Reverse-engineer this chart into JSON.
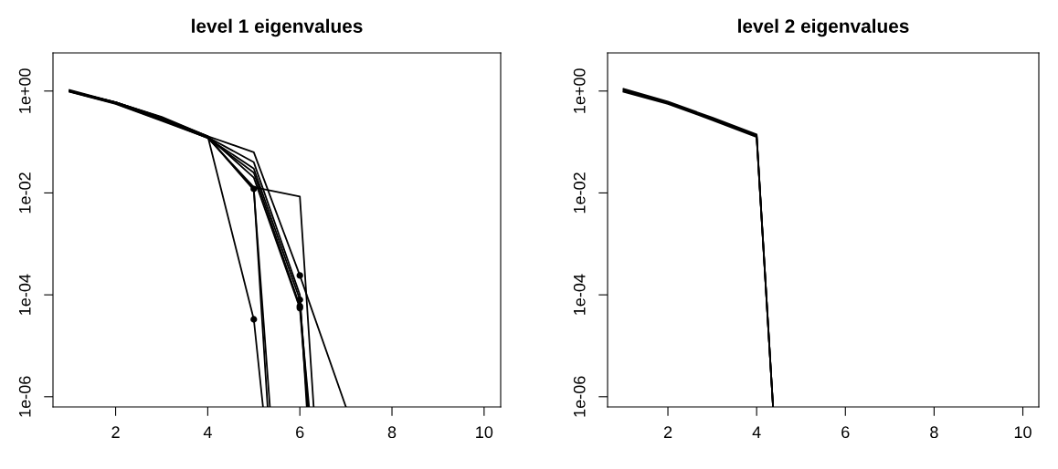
{
  "chart_data": [
    {
      "type": "line",
      "title": "level 1 eigenvalues",
      "log": "y",
      "xlim": [
        0.64,
        10.36
      ],
      "xticks": [
        2,
        4,
        6,
        8,
        10
      ],
      "ylim": [
        6.3e-07,
        5.6
      ],
      "yticks": [
        {
          "value": 1,
          "label": "1e+00"
        },
        {
          "value": 0.01,
          "label": "1e-02"
        },
        {
          "value": 0.0001,
          "label": "1e-04"
        },
        {
          "value": 1e-06,
          "label": "1e-06"
        }
      ],
      "grid": false,
      "line_style": "solid",
      "marker": "none",
      "series": [
        {
          "color": "#000000",
          "x": [
            1,
            2,
            3,
            4,
            5,
            6,
            7
          ],
          "values": [
            1.0,
            0.6,
            0.3,
            0.13,
            0.063,
            0.00024,
            6.3e-07
          ]
        },
        {
          "color": "#000000",
          "x": [
            1,
            2,
            3,
            4,
            5,
            6,
            6.15
          ],
          "values": [
            1.0,
            0.58,
            0.28,
            0.125,
            0.04,
            0.0001,
            6.3e-07
          ]
        },
        {
          "color": "#000000",
          "x": [
            1,
            2,
            3,
            4,
            5,
            6,
            6.18
          ],
          "values": [
            0.98,
            0.57,
            0.27,
            0.12,
            0.03,
            8e-05,
            6.3e-07
          ]
        },
        {
          "color": "#000000",
          "x": [
            1,
            2,
            3,
            4,
            5,
            6,
            6.2
          ],
          "values": [
            0.97,
            0.56,
            0.26,
            0.12,
            0.025,
            6e-05,
            6.3e-07
          ]
        },
        {
          "color": "#000000",
          "x": [
            1,
            2,
            3,
            4,
            5,
            6,
            6.17
          ],
          "values": [
            1.05,
            0.6,
            0.31,
            0.13,
            0.02,
            5.5e-05,
            6.3e-07
          ]
        },
        {
          "color": "#000000",
          "x": [
            1,
            2,
            3,
            4,
            5,
            5.3
          ],
          "values": [
            1.0,
            0.6,
            0.3,
            0.125,
            0.012,
            6.3e-07
          ]
        },
        {
          "color": "#000000",
          "x": [
            1,
            2,
            3,
            4,
            5,
            5.35
          ],
          "values": [
            1.02,
            0.59,
            0.29,
            0.125,
            0.0115,
            6.3e-07
          ]
        },
        {
          "color": "#000000",
          "x": [
            1,
            2,
            3,
            4,
            5,
            6,
            6.3
          ],
          "values": [
            0.99,
            0.58,
            0.28,
            0.12,
            0.013,
            0.0085,
            6.3e-07
          ]
        },
        {
          "color": "#000000",
          "x": [
            1,
            2,
            3,
            4,
            5,
            5.2
          ],
          "values": [
            1.0,
            0.6,
            0.29,
            0.13,
            3.3e-05,
            6.3e-07
          ]
        },
        {
          "type": "scatter",
          "marker": "circle",
          "color": "#000000",
          "x": [
            5,
            5,
            6,
            6,
            6,
            6
          ],
          "values": [
            0.012,
            3.3e-05,
            0.00024,
            5.5e-05,
            6e-05,
            8e-05
          ]
        }
      ]
    },
    {
      "type": "line",
      "title": "level 2 eigenvalues",
      "log": "y",
      "xlim": [
        0.64,
        10.36
      ],
      "xticks": [
        2,
        4,
        6,
        8,
        10
      ],
      "ylim": [
        6.3e-07,
        5.6
      ],
      "yticks": [
        {
          "value": 1,
          "label": "1e+00"
        },
        {
          "value": 0.01,
          "label": "1e-02"
        },
        {
          "value": 0.0001,
          "label": "1e-04"
        },
        {
          "value": 1e-06,
          "label": "1e-06"
        }
      ],
      "grid": false,
      "line_style": "solid",
      "marker": "none",
      "series": [
        {
          "color": "#000000",
          "x": [
            1,
            2,
            3,
            4,
            4.37
          ],
          "values": [
            1.1,
            0.62,
            0.3,
            0.14,
            6.3e-07
          ]
        },
        {
          "color": "#000000",
          "x": [
            1,
            2,
            3,
            4,
            4.37
          ],
          "values": [
            1.05,
            0.6,
            0.29,
            0.135,
            6.3e-07
          ]
        },
        {
          "color": "#000000",
          "x": [
            1,
            2,
            3,
            4,
            4.37
          ],
          "values": [
            1.0,
            0.58,
            0.28,
            0.13,
            6.3e-07
          ]
        },
        {
          "color": "#000000",
          "x": [
            1,
            2,
            3,
            4,
            4.37
          ],
          "values": [
            0.97,
            0.56,
            0.27,
            0.125,
            6.3e-07
          ]
        }
      ]
    }
  ]
}
